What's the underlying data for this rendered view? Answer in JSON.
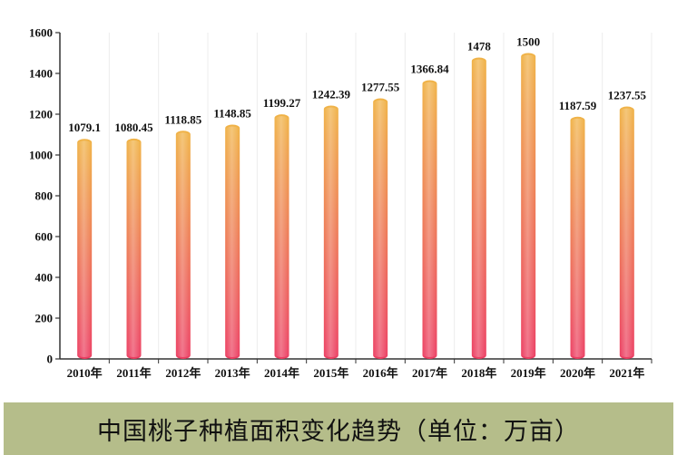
{
  "chart_data": {
    "type": "bar",
    "title": "中国桃子种植面积变化趋势（单位：万亩）",
    "categories": [
      "2010年",
      "2011年",
      "2012年",
      "2013年",
      "2014年",
      "2015年",
      "2016年",
      "2017年",
      "2018年",
      "2019年",
      "2020年",
      "2021年"
    ],
    "values": [
      1079.1,
      1080.45,
      1118.85,
      1148.85,
      1199.27,
      1242.39,
      1277.55,
      1366.84,
      1478,
      1500,
      1187.59,
      1237.55
    ],
    "data_labels": [
      "1079.1",
      "1080.45",
      "1118.85",
      "1148.85",
      "1199.27",
      "1242.39",
      "1277.55",
      "1366.84",
      "1478",
      "1500",
      "1187.59",
      "1237.55"
    ],
    "yticks": [
      "0",
      "200",
      "400",
      "600",
      "800",
      "1000",
      "1200",
      "1400",
      "1600"
    ],
    "ylim": [
      0,
      1600
    ],
    "xlabel": "",
    "ylabel": "",
    "grid": "vertical",
    "colors": {
      "bar_top": "#f0b347",
      "bar_bottom": "#ec3f63",
      "grid": "#ececec",
      "axis": "#333333",
      "caption_bg": "#b5bd8a"
    }
  }
}
